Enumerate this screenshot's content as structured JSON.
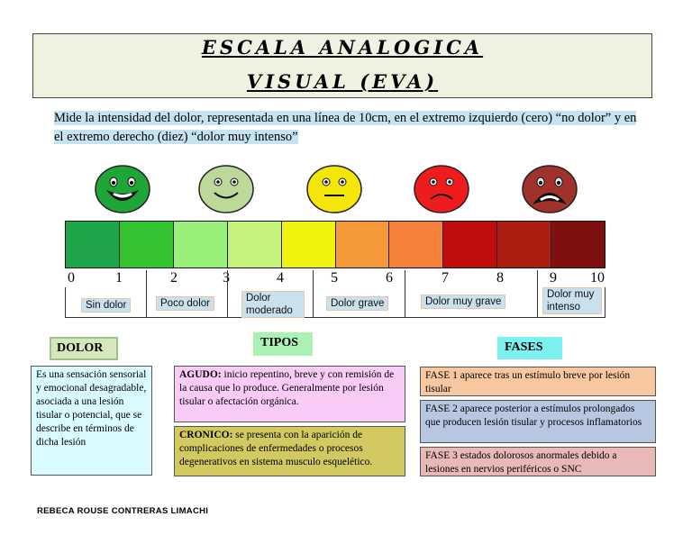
{
  "title": {
    "line1": "ESCALA ANALOGICA",
    "line2": "VISUAL (EVA)"
  },
  "description": "Mide la intensidad del dolor, representada en una línea de 10cm, en el extremo izquierdo (cero) “no dolor” y en el extremo derecho (diez) “dolor muy intenso”",
  "faces": [
    {
      "icon": "happy-face-icon",
      "color": "#1fa637"
    },
    {
      "icon": "smiling-face-icon",
      "color": "#bcd99a"
    },
    {
      "icon": "neutral-face-icon",
      "color": "#f5e60a"
    },
    {
      "icon": "sad-face-icon",
      "color": "#ee1c1c"
    },
    {
      "icon": "crying-face-icon",
      "color": "#a1322b"
    }
  ],
  "scale_colors": [
    "#1fa64a",
    "#34c431",
    "#98ef79",
    "#c5f27c",
    "#f2f20f",
    "#f4983a",
    "#f4803a",
    "#c00d0d",
    "#ad1e10",
    "#7e1110"
  ],
  "numbers": [
    "0",
    "1",
    "2",
    "3",
    "4",
    "5",
    "6",
    "7",
    "8",
    "9",
    "10"
  ],
  "labels": {
    "sin_dolor": "Sin dolor",
    "poco_dolor": "Poco dolor",
    "moderado_1": "Dolor",
    "moderado_2": "moderado",
    "grave": "Dolor grave",
    "muy_grave": "Dolor muy grave",
    "intenso_1": "Dolor muy",
    "intenso_2": "intenso"
  },
  "sections": {
    "dolor": "DOLOR",
    "tipos": "TIPOS",
    "fases": "FASES"
  },
  "dolor_text": "Es una sensación sensorial y emocional desagradable, asociada a una lesión tisular o potencial, que se describe en términos de dicha lesión",
  "agudo": {
    "head": "AGUDO:",
    "text": " inicio repentino, breve y con remisión de la causa que lo produce. Generalmente por lesión tisular o afectación orgánica."
  },
  "cronico": {
    "head": "CRONICO:",
    "text": "  se presenta con la aparición de complicaciones de enfermedades o procesos degenerativos en sistema musculo esquelético."
  },
  "fases": [
    "FASE 1 aparece tras un estímulo breve por lesión tisular",
    "FASE 2 aparece posterior a estímulos prolongados que producen lesión tisular y procesos inflamatorios",
    "FASE 3 estados dolorosos anormales debido a lesiones en nervios periféricos o SNC"
  ],
  "author": "REBECA ROUSE CONTRERAS  LIMACHI"
}
